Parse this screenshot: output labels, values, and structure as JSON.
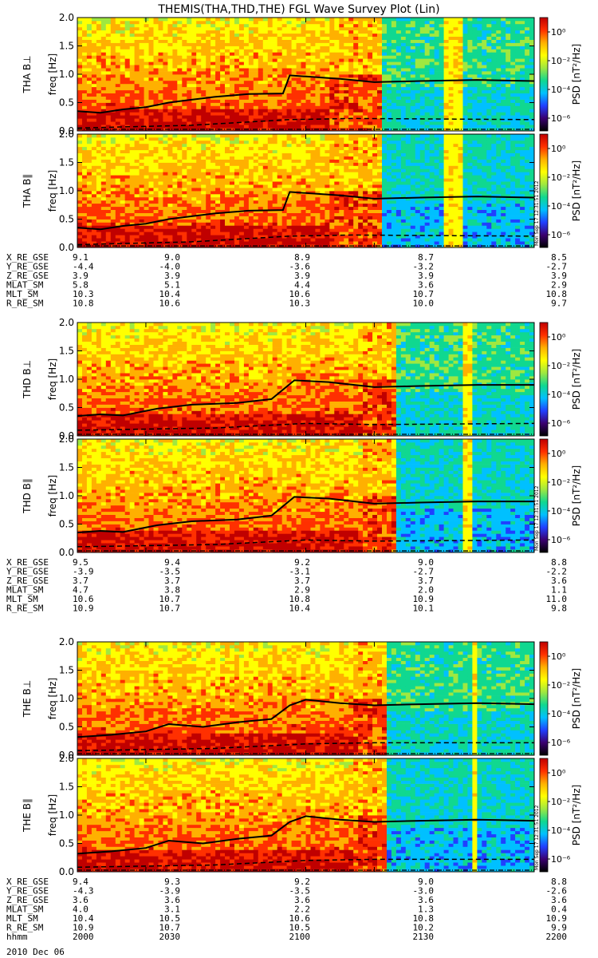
{
  "title": "THEMIS(THA,THD,THE) FGL Wave Survey Plot (Lin)",
  "stamp": "Mon Sep 17 12:31:51 2012",
  "date_label": "2010 Dec 06",
  "colorbar": {
    "label": "PSD [nT²/Hz]",
    "ticks": [
      "10⁰",
      "10⁻²",
      "10⁻⁴",
      "10⁻⁶"
    ],
    "colors": [
      "#000000",
      "#3a0070",
      "#2040ff",
      "#00c0ff",
      "#10d890",
      "#9fe840",
      "#ffff00",
      "#ffb000",
      "#ff3000",
      "#c00000"
    ]
  },
  "panel_ylabel": "freq [Hz]",
  "ytick_labels": [
    "0.0",
    "0.5",
    "1.0",
    "1.5",
    "2.0"
  ],
  "time_ticks": [
    "2000",
    "2030",
    "2100",
    "2130",
    "2200"
  ],
  "hhmm_label": "hhmm",
  "chart_data": [
    {
      "type": "heatmap",
      "probe": "THA",
      "panels": [
        {
          "name": "THA B⊥",
          "cuts": [
            0.55,
            0.67,
            0.8,
            0.84
          ]
        },
        {
          "name": "THA B∥",
          "cuts": [
            0.55,
            0.67,
            0.8,
            0.84
          ]
        }
      ],
      "xlim": [
        2000,
        2200
      ],
      "ylim": [
        0,
        2.0
      ],
      "ylabel": "freq [Hz]",
      "fce_line": [
        [
          2000,
          0.35
        ],
        [
          2010,
          0.32
        ],
        [
          2020,
          0.38
        ],
        [
          2030,
          0.42
        ],
        [
          2040,
          0.5
        ],
        [
          2050,
          0.55
        ],
        [
          2060,
          0.6
        ],
        [
          2075,
          0.65
        ],
        [
          2090,
          0.66
        ],
        [
          2093,
          0.98
        ],
        [
          2100,
          0.96
        ],
        [
          2115,
          0.92
        ],
        [
          2130,
          0.86
        ],
        [
          2150,
          0.88
        ],
        [
          2175,
          0.9
        ],
        [
          2200,
          0.88
        ]
      ],
      "half_fce_line": [
        [
          2000,
          0.05
        ],
        [
          2050,
          0.1
        ],
        [
          2093,
          0.2
        ],
        [
          2120,
          0.22
        ],
        [
          2200,
          0.2
        ]
      ],
      "ephemeris": {
        "labels": [
          "X_RE_GSE",
          "Y_RE_GSE",
          "Z_RE_GSE",
          "MLAT_SM",
          "MLT_SM",
          "R_RE_SM"
        ],
        "rows": [
          [
            "9.1",
            "9.0",
            "8.9",
            "8.7",
            "8.5"
          ],
          [
            "-4.4",
            "-4.0",
            "-3.6",
            "-3.2",
            "-2.7"
          ],
          [
            "3.9",
            "3.9",
            "3.9",
            "3.9",
            "3.9"
          ],
          [
            "5.8",
            "5.1",
            "4.4",
            "3.6",
            "2.9"
          ],
          [
            "10.3",
            "10.4",
            "10.6",
            "10.7",
            "10.8"
          ],
          [
            "10.8",
            "10.6",
            "10.3",
            "10.0",
            "9.7"
          ]
        ]
      }
    },
    {
      "type": "heatmap",
      "probe": "THD",
      "panels": [
        {
          "name": "THD B⊥",
          "cuts": [
            0.62,
            0.7,
            0.84,
            0.86
          ]
        },
        {
          "name": "THD B∥",
          "cuts": [
            0.62,
            0.7,
            0.84,
            0.86
          ]
        }
      ],
      "xlim": [
        2000,
        2200
      ],
      "ylim": [
        0,
        2.0
      ],
      "ylabel": "freq [Hz]",
      "fce_line": [
        [
          2000,
          0.35
        ],
        [
          2010,
          0.38
        ],
        [
          2020,
          0.36
        ],
        [
          2035,
          0.48
        ],
        [
          2050,
          0.55
        ],
        [
          2070,
          0.58
        ],
        [
          2085,
          0.65
        ],
        [
          2095,
          0.98
        ],
        [
          2110,
          0.95
        ],
        [
          2130,
          0.86
        ],
        [
          2150,
          0.88
        ],
        [
          2175,
          0.9
        ],
        [
          2200,
          0.9
        ]
      ],
      "half_fce_line": [
        [
          2000,
          0.1
        ],
        [
          2060,
          0.14
        ],
        [
          2100,
          0.22
        ],
        [
          2130,
          0.2
        ],
        [
          2200,
          0.22
        ]
      ],
      "ephemeris": {
        "labels": [
          "X_RE_GSE",
          "Y_RE_GSE",
          "Z_RE_GSE",
          "MLAT_SM",
          "MLT_SM",
          "R_RE_SM"
        ],
        "rows": [
          [
            "9.5",
            "9.4",
            "9.2",
            "9.0",
            "8.8"
          ],
          [
            "-3.9",
            "-3.5",
            "-3.1",
            "-2.7",
            "-2.2"
          ],
          [
            "3.7",
            "3.7",
            "3.7",
            "3.7",
            "3.6"
          ],
          [
            "4.7",
            "3.8",
            "2.9",
            "2.0",
            "1.1"
          ],
          [
            "10.6",
            "10.7",
            "10.8",
            "10.9",
            "11.0"
          ],
          [
            "10.9",
            "10.7",
            "10.4",
            "10.1",
            "9.8"
          ]
        ]
      }
    },
    {
      "type": "heatmap",
      "probe": "THE",
      "panels": [
        {
          "name": "THE B⊥",
          "cuts": [
            0.6,
            0.68,
            0.86,
            0.88
          ]
        },
        {
          "name": "THE B∥",
          "cuts": [
            0.6,
            0.68,
            0.86,
            0.88
          ]
        }
      ],
      "xlim": [
        2000,
        2200
      ],
      "ylim": [
        0,
        2.0
      ],
      "ylabel": "freq [Hz]",
      "fce_line": [
        [
          2000,
          0.32
        ],
        [
          2015,
          0.36
        ],
        [
          2030,
          0.42
        ],
        [
          2040,
          0.55
        ],
        [
          2055,
          0.5
        ],
        [
          2070,
          0.58
        ],
        [
          2085,
          0.64
        ],
        [
          2093,
          0.88
        ],
        [
          2100,
          0.98
        ],
        [
          2115,
          0.92
        ],
        [
          2130,
          0.88
        ],
        [
          2150,
          0.9
        ],
        [
          2175,
          0.92
        ],
        [
          2200,
          0.9
        ]
      ],
      "half_fce_line": [
        [
          2000,
          0.08
        ],
        [
          2060,
          0.12
        ],
        [
          2100,
          0.2
        ],
        [
          2130,
          0.22
        ],
        [
          2200,
          0.22
        ]
      ],
      "ephemeris": {
        "labels": [
          "X_RE_GSE",
          "Y_RE_GSE",
          "Z_RE_GSE",
          "MLAT_SM",
          "MLT_SM",
          "R_RE_SM"
        ],
        "rows": [
          [
            "9.4",
            "9.3",
            "9.2",
            "9.0",
            "8.8"
          ],
          [
            "-4.3",
            "-3.9",
            "-3.5",
            "-3.0",
            "-2.6"
          ],
          [
            "3.6",
            "3.6",
            "3.6",
            "3.6",
            "3.6"
          ],
          [
            "4.0",
            "3.1",
            "2.2",
            "1.3",
            "0.4"
          ],
          [
            "10.4",
            "10.5",
            "10.6",
            "10.8",
            "10.9"
          ],
          [
            "10.9",
            "10.7",
            "10.5",
            "10.2",
            "9.9"
          ]
        ]
      }
    }
  ]
}
